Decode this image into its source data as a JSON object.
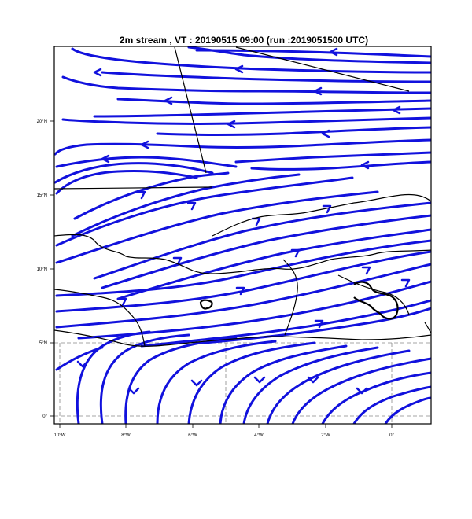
{
  "title": "2m stream , VT : 20190515  09:00 (run :2019051500 UTC)",
  "colors": {
    "streamline": "#1111dd",
    "coastline": "#000000",
    "grid": "#888888",
    "frame": "#000000",
    "background": "#ffffff"
  },
  "lat_ticks": [
    "0°",
    "5°N",
    "10°N",
    "15°N",
    "20°N"
  ],
  "lon_ticks": [
    "10°W",
    "8°W",
    "6°W",
    "4°W",
    "2°W",
    "0°"
  ]
}
